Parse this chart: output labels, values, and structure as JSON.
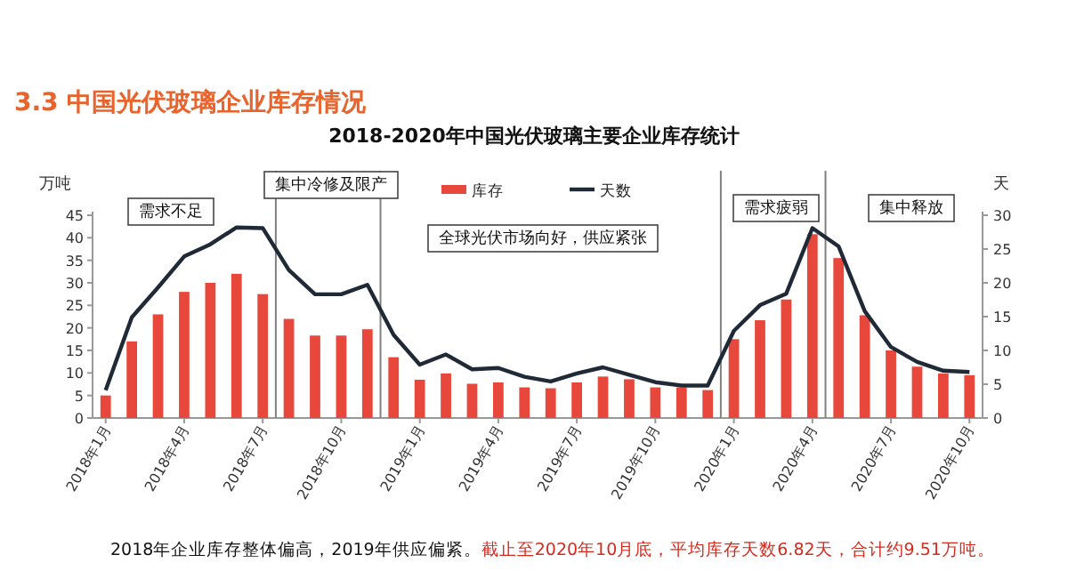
{
  "chart_data": {
    "type": "bar",
    "title": "3.3 中国光伏玻璃企业库存情况",
    "subtitle": "2018-2020年中国光伏玻璃主要企业库存统计",
    "ylabel": "万吨",
    "y2label": "天",
    "legend": "top",
    "x": [
      "2018-01",
      "2018-02",
      "2018-03",
      "2018-04",
      "2018-05",
      "2018-06",
      "2018-07",
      "2018-08",
      "2018-09",
      "2018-10",
      "2018-11",
      "2018-12",
      "2019-01",
      "2019-02",
      "2019-03",
      "2019-04",
      "2019-05",
      "2019-06",
      "2019-07",
      "2019-08",
      "2019-09",
      "2019-10",
      "2019-11",
      "2019-12",
      "2020-01",
      "2020-02",
      "2020-03",
      "2020-04",
      "2020-05",
      "2020-06",
      "2020-07",
      "2020-08",
      "2020-09",
      "2020-10"
    ],
    "xlim": [
      "2017-12-16",
      "2020-10-16"
    ],
    "xticks": [
      {
        "value": "2018-01",
        "label": "2018年1月"
      },
      {
        "value": "2018-04",
        "label": "2018年4月"
      },
      {
        "value": "2018-07",
        "label": "2018年7月"
      },
      {
        "value": "2018-10",
        "label": "2018年10月"
      },
      {
        "value": "2019-01",
        "label": "2019年1月"
      },
      {
        "value": "2019-04",
        "label": "2019年4月"
      },
      {
        "value": "2019-07",
        "label": "2019年7月"
      },
      {
        "value": "2019-10",
        "label": "2019年10月"
      },
      {
        "value": "2020-01",
        "label": "2020年1月"
      },
      {
        "value": "2020-04",
        "label": "2020年4月"
      },
      {
        "value": "2020-07",
        "label": "2020年7月"
      },
      {
        "value": "2020-10",
        "label": "2020年10月"
      }
    ],
    "series": [
      {
        "name": "库存",
        "color": "#e8483b",
        "values": [
          5,
          17,
          23,
          28,
          30,
          32,
          27.5,
          22,
          18.3,
          18.3,
          19.7,
          13.5,
          8.5,
          9.9,
          7.6,
          7.9,
          6.8,
          6.6,
          7.9,
          9.2,
          8.6,
          6.8,
          6.8,
          6.2,
          17.5,
          21.7,
          26.3,
          40.8,
          35.5,
          22.8,
          15,
          11.4,
          9.9,
          9.5
        ]
      },
      {
        "name": "天数",
        "type": "line",
        "axis": "y2",
        "color": "#1f2a36",
        "values": [
          4.1,
          14.9,
          19.3,
          23.9,
          25.7,
          28.2,
          28.1,
          21.9,
          18.3,
          18.3,
          19.7,
          12.3,
          7.9,
          9.4,
          7.2,
          7.4,
          6.1,
          5.4,
          6.6,
          7.5,
          6.4,
          5.3,
          4.8,
          4.8,
          12.9,
          16.7,
          18.4,
          28.1,
          25.4,
          15.8,
          10.5,
          8.3,
          7,
          6.8
        ]
      }
    ],
    "ylim": [
      0,
      45
    ],
    "yticks": [
      0,
      5,
      10,
      15,
      20,
      25,
      30,
      35,
      40,
      45
    ],
    "y2lim": [
      0,
      30
    ],
    "y2ticks": [
      0,
      5,
      10,
      15,
      20,
      25,
      30
    ],
    "ref_lines": [
      {
        "axis": "x",
        "value": "2018-07-16",
        "color": "#808080"
      },
      {
        "axis": "x",
        "value": "2018-11-16",
        "color": "#808080"
      },
      {
        "axis": "x",
        "value": "2019-12-16",
        "color": "#808080"
      },
      {
        "axis": "x",
        "value": "2020-04-16",
        "color": "#808080"
      }
    ],
    "annotations": [
      "需求不足",
      "集中冷修及限产",
      "全球光伏市场向好，供应紧张",
      "需求疲弱",
      "集中释放",
      "2018年企业库存整体偏高，2019年供应偏紧。",
      "截止至2020年10月底，平均库存天数6.82天，合计约9.51万吨。"
    ]
  }
}
